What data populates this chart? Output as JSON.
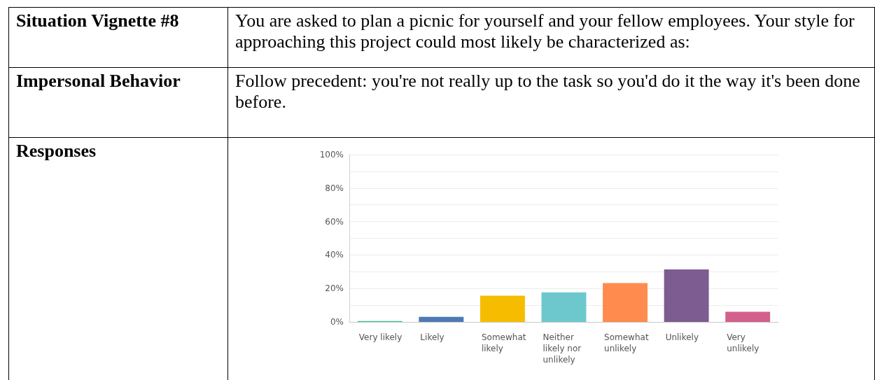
{
  "chart_data": {
    "type": "bar",
    "title": "Situation Vignette #8",
    "annotations": [
      "You are asked to plan a picnic for yourself and your fellow employees. Your style for approaching this project could most likely be characterized as:",
      "Impersonal Behavior",
      "Follow precedent: you're not really up to the task so you'd do it the way it's been done before.",
      "Responses"
    ],
    "categories": [
      "Very likely",
      "Likely",
      "Somewhat likely",
      "Neither likely nor unlikely",
      "Somewhat unlikely",
      "Unlikely",
      "Very unlikely"
    ],
    "values": [
      0.5,
      3,
      15.7,
      17.7,
      23.2,
      31.4,
      6.1
    ],
    "colors": [
      "#3dc78f",
      "#4e79b5",
      "#f6bd00",
      "#6cc8cc",
      "#ff8b4f",
      "#7d5c91",
      "#d35f8d"
    ],
    "ylim": [
      0,
      100
    ],
    "yticks": [
      {
        "value": 0,
        "label": "0%"
      },
      {
        "value": 10,
        "label": null
      },
      {
        "value": 20,
        "label": "20%"
      },
      {
        "value": 30,
        "label": null
      },
      {
        "value": 40,
        "label": "40%"
      },
      {
        "value": 50,
        "label": null
      },
      {
        "value": 60,
        "label": "60%"
      },
      {
        "value": 70,
        "label": null
      },
      {
        "value": 80,
        "label": "80%"
      },
      {
        "value": 90,
        "label": null
      },
      {
        "value": 100,
        "label": "100%"
      }
    ],
    "grid": "y"
  }
}
